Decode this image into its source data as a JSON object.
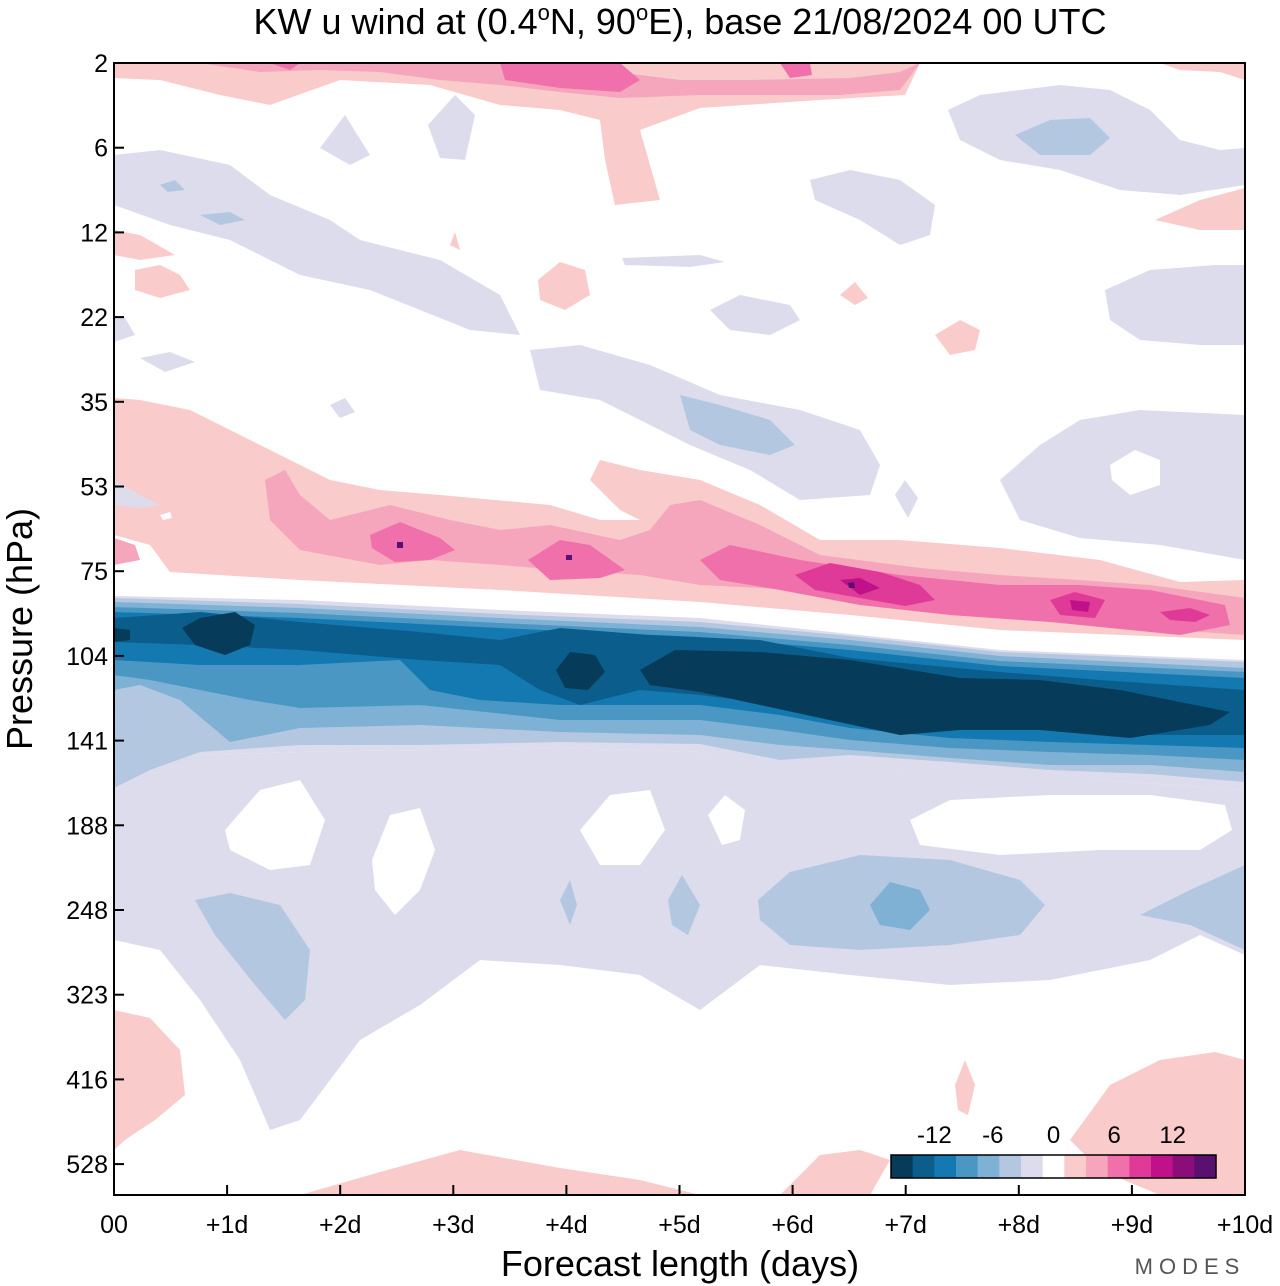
{
  "chart_data": {
    "type": "heatmap",
    "title_main": "KW u wind at (0.4",
    "title_lat_unit": "N, 90",
    "title_lon_unit": "E),  base 21/08/2024  00 UTC",
    "degree_mark": "o",
    "xlabel": "Forecast length (days)",
    "ylabel": "Pressure (hPa)",
    "x_ticks": [
      "00",
      "+1d",
      "+2d",
      "+3d",
      "+4d",
      "+5d",
      "+6d",
      "+7d",
      "+8d",
      "+9d",
      "+10d"
    ],
    "y_ticks": [
      "2",
      "6",
      "12",
      "22",
      "35",
      "53",
      "75",
      "104",
      "141",
      "188",
      "248",
      "323",
      "416",
      "528"
    ],
    "colorbar": {
      "tick_labels": [
        "-12",
        "-6",
        "0",
        "6",
        "12"
      ],
      "colors": [
        "#073b5a",
        "#0b5e8c",
        "#1479b1",
        "#4a97c4",
        "#7fb1d5",
        "#b4c7e0",
        "#dcdcec",
        "#ffffff",
        "#f9cbcb",
        "#f6a6bc",
        "#ef70aa",
        "#df3a98",
        "#c0118a",
        "#8b0d7a",
        "#5a1070"
      ]
    },
    "features": [
      {
        "level": 6,
        "color": "#ef70aa",
        "x": [
          1.3,
          4.0
        ],
        "p": [
          65,
          88
        ],
        "note": "weak pink 60-80hPa days 1-5"
      },
      {
        "level": 9,
        "color": "#c0118a",
        "x": [
          6.0,
          9.8
        ],
        "p": [
          75,
          98
        ],
        "note": "strong westerlies 80-95hPa days 6-10"
      },
      {
        "level": -12,
        "color": "#073b5a",
        "x": [
          0.0,
          10.0
        ],
        "p": [
          95,
          145
        ],
        "note": "strong easterly jet 100-140hPa"
      },
      {
        "level": -3,
        "color": "#b4c7e0",
        "x": [
          0.0,
          10.0
        ],
        "p": [
          145,
          330
        ],
        "note": "weak easterlies 150-330hPa"
      }
    ],
    "brand": "MODES"
  }
}
